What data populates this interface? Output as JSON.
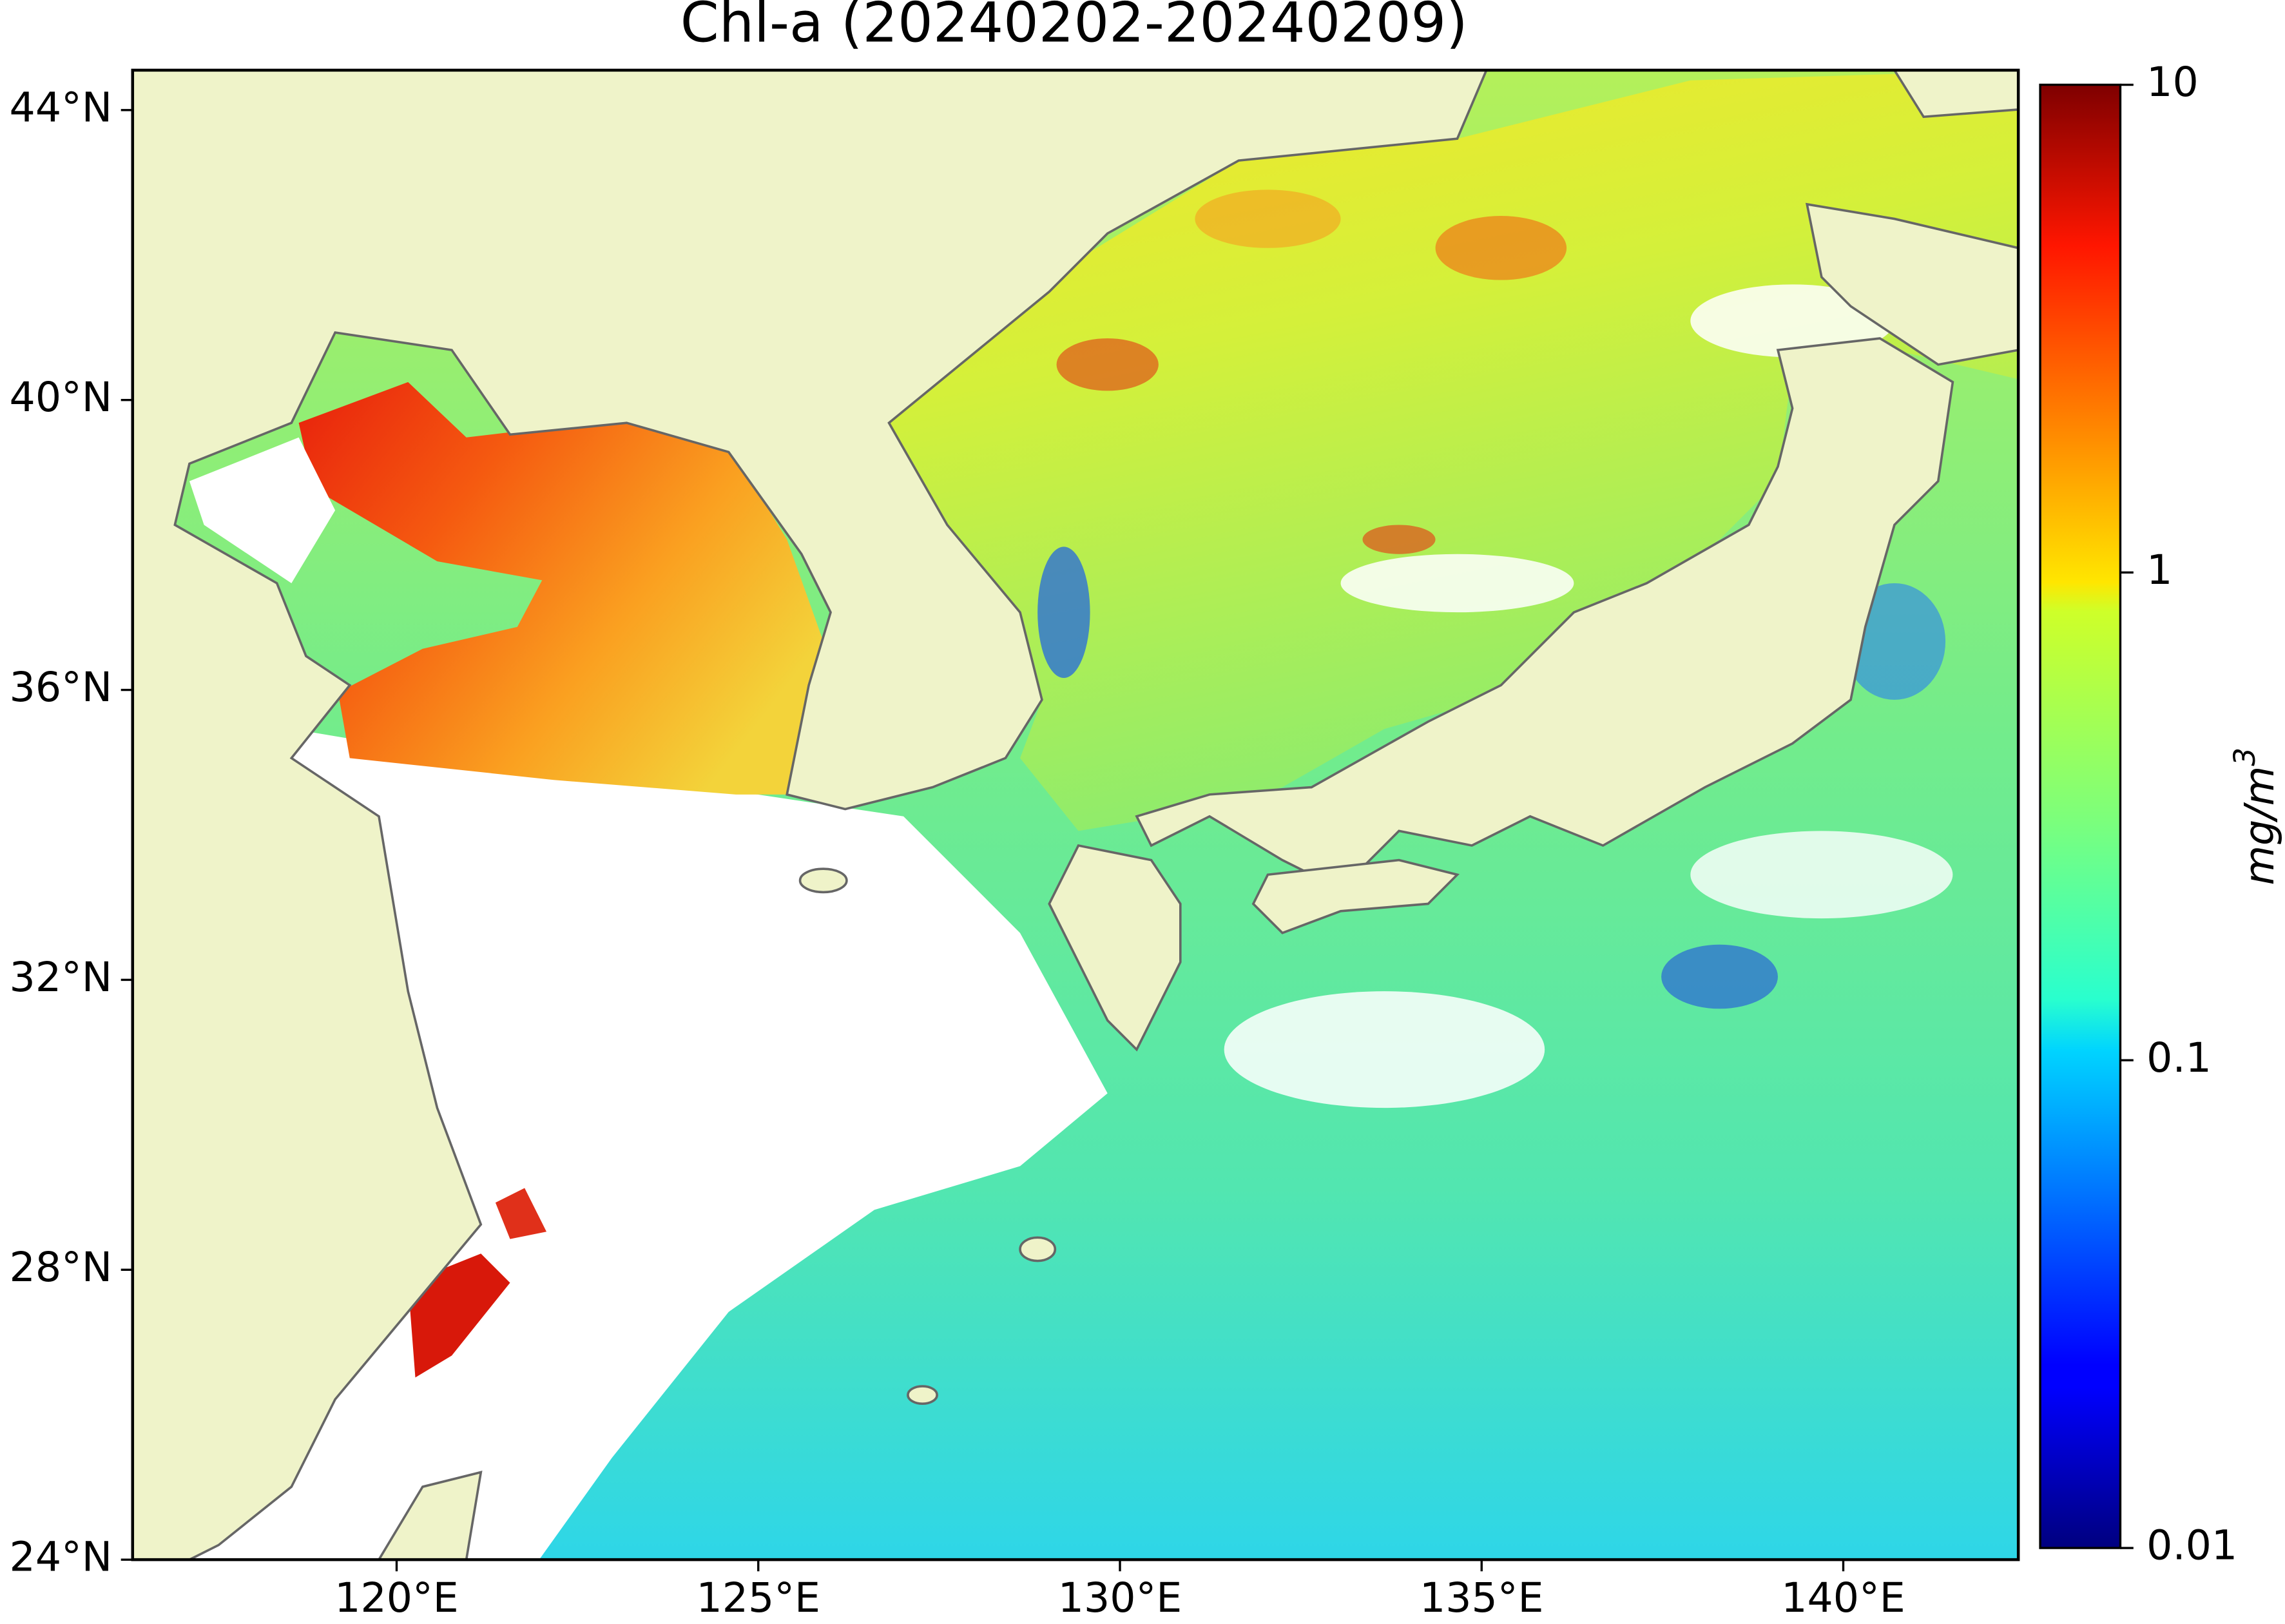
{
  "title": "Chl-a (20240202-20240209)",
  "map": {
    "xlim": [
      116.35,
      142.42
    ],
    "ylim": [
      24,
      44.55
    ],
    "xticks": [
      {
        "value": 120,
        "label": "120°E"
      },
      {
        "value": 125,
        "label": "125°E"
      },
      {
        "value": 130,
        "label": "130°E"
      },
      {
        "value": 135,
        "label": "135°E"
      },
      {
        "value": 140,
        "label": "140°E"
      }
    ],
    "yticks": [
      {
        "value": 24,
        "label": "24°N"
      },
      {
        "value": 28,
        "label": "28°N"
      },
      {
        "value": 32,
        "label": "32°N"
      },
      {
        "value": 36,
        "label": "36°N"
      },
      {
        "value": 40,
        "label": "40°N"
      },
      {
        "value": 44,
        "label": "44°N"
      }
    ]
  },
  "colorbar": {
    "scale": "log",
    "lim": [
      0.01,
      10
    ],
    "ticks": [
      0.01,
      0.1,
      1,
      10
    ],
    "colormap": "jet",
    "label": "mg/m",
    "label_superscript": "3"
  }
}
